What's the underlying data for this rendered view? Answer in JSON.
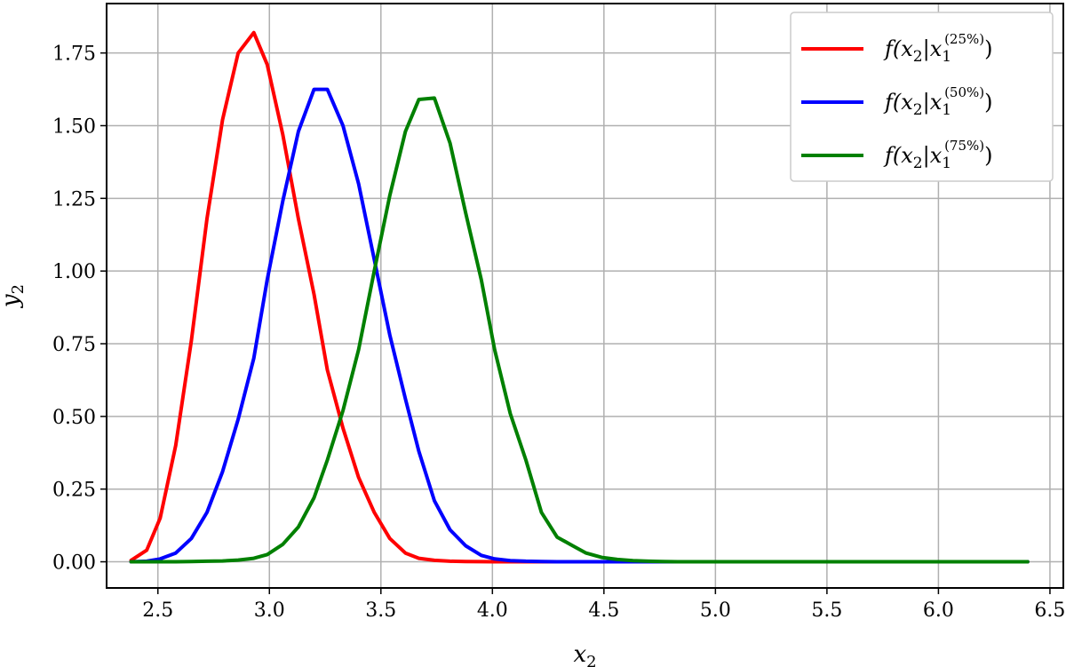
{
  "chart_data": {
    "type": "line",
    "title": "",
    "xlabel": "x2",
    "ylabel": "y2",
    "xlim": [
      2.27,
      6.56
    ],
    "ylim": [
      -0.09,
      1.92
    ],
    "xticks": [
      2.5,
      3.0,
      3.5,
      4.0,
      4.5,
      5.0,
      5.5,
      6.0,
      6.5
    ],
    "xtick_labels": [
      "2.5",
      "3.0",
      "3.5",
      "4.0",
      "4.5",
      "5.0",
      "5.5",
      "6.0",
      "6.5"
    ],
    "yticks": [
      0.0,
      0.25,
      0.5,
      0.75,
      1.0,
      1.25,
      1.5,
      1.75
    ],
    "ytick_labels": [
      "0.00",
      "0.25",
      "0.50",
      "0.75",
      "1.00",
      "1.25",
      "1.50",
      "1.75"
    ],
    "grid": true,
    "legend_position": "top-right",
    "series": [
      {
        "name": "f(x2|x1(25%))",
        "legend": {
          "base": "f(x",
          "sub1": "2",
          "mid": "|x",
          "sub2": "1",
          "sup": "(25%)",
          "end": ")"
        },
        "color": "#ff0000",
        "x": [
          2.38,
          2.45,
          2.51,
          2.58,
          2.65,
          2.72,
          2.79,
          2.86,
          2.93,
          2.99,
          3.06,
          3.13,
          3.2,
          3.26,
          3.33,
          3.4,
          3.47,
          3.54,
          3.61,
          3.67,
          3.74,
          3.81,
          3.88,
          3.95,
          4.01,
          4.08,
          4.15,
          4.22,
          4.29,
          4.36,
          4.42,
          4.49,
          4.56,
          4.63,
          4.7,
          4.76,
          4.83,
          4.9,
          4.97,
          5.04,
          5.1,
          5.17,
          5.24,
          5.31,
          5.38,
          5.45,
          5.51,
          5.58,
          5.65,
          5.72,
          5.79,
          5.85,
          5.92,
          5.99,
          6.06,
          6.13,
          6.19,
          6.26,
          6.33,
          6.4
        ],
        "y": [
          0.005,
          0.04,
          0.15,
          0.4,
          0.76,
          1.18,
          1.52,
          1.75,
          1.82,
          1.71,
          1.47,
          1.18,
          0.92,
          0.66,
          0.46,
          0.29,
          0.17,
          0.08,
          0.03,
          0.012,
          0.005,
          0.002,
          0.001,
          0.0005,
          0,
          0,
          0,
          0,
          0,
          0,
          0,
          0,
          0,
          0,
          0,
          0,
          0,
          0,
          0,
          0,
          0,
          0,
          0,
          0,
          0,
          0,
          0,
          0,
          0,
          0,
          0,
          0,
          0,
          0,
          0,
          0,
          0,
          0,
          0,
          0
        ]
      },
      {
        "name": "f(x2|x1(50%))",
        "legend": {
          "base": "f(x",
          "sub1": "2",
          "mid": "|x",
          "sub2": "1",
          "sup": "(50%)",
          "end": ")"
        },
        "color": "#0000ff",
        "x": [
          2.38,
          2.45,
          2.51,
          2.58,
          2.65,
          2.72,
          2.79,
          2.86,
          2.93,
          2.99,
          3.06,
          3.13,
          3.2,
          3.26,
          3.33,
          3.4,
          3.47,
          3.54,
          3.61,
          3.67,
          3.74,
          3.81,
          3.88,
          3.95,
          4.01,
          4.08,
          4.15,
          4.22,
          4.29,
          4.36,
          4.42,
          4.49,
          4.56,
          4.63,
          4.7,
          4.76,
          4.83,
          4.9,
          4.97,
          5.04,
          5.1,
          5.17,
          5.24,
          5.31,
          5.38,
          5.45,
          5.51,
          5.58,
          5.65,
          5.72,
          5.79,
          5.85,
          5.92,
          5.99,
          6.06,
          6.13,
          6.19,
          6.26,
          6.33,
          6.4
        ],
        "y": [
          0.0,
          0.002,
          0.01,
          0.03,
          0.08,
          0.17,
          0.31,
          0.49,
          0.7,
          0.97,
          1.24,
          1.48,
          1.625,
          1.625,
          1.5,
          1.3,
          1.04,
          0.78,
          0.56,
          0.38,
          0.21,
          0.11,
          0.055,
          0.022,
          0.01,
          0.004,
          0.002,
          0.001,
          0,
          0,
          0,
          0,
          0,
          0,
          0,
          0,
          0,
          0,
          0,
          0,
          0,
          0,
          0,
          0,
          0,
          0,
          0,
          0,
          0,
          0,
          0,
          0,
          0,
          0,
          0,
          0,
          0,
          0,
          0,
          0
        ]
      },
      {
        "name": "f(x2|x1(75%))",
        "legend": {
          "base": "f(x",
          "sub1": "2",
          "mid": "|x",
          "sub2": "1",
          "sup": "(75%)",
          "end": ")"
        },
        "color": "#008000",
        "x": [
          2.38,
          2.45,
          2.51,
          2.58,
          2.65,
          2.72,
          2.79,
          2.86,
          2.93,
          2.99,
          3.06,
          3.13,
          3.2,
          3.26,
          3.33,
          3.4,
          3.47,
          3.54,
          3.61,
          3.67,
          3.74,
          3.81,
          3.88,
          3.95,
          4.01,
          4.08,
          4.15,
          4.22,
          4.29,
          4.36,
          4.42,
          4.49,
          4.56,
          4.63,
          4.7,
          4.76,
          4.83,
          4.9,
          4.97,
          5.04,
          5.1,
          5.17,
          5.24,
          5.31,
          5.38,
          5.45,
          5.51,
          5.58,
          5.65,
          5.72,
          5.79,
          5.85,
          5.92,
          5.99,
          6.06,
          6.13,
          6.19,
          6.26,
          6.33,
          6.4
        ],
        "y": [
          0.0,
          0.0,
          0.0,
          0.0,
          0.001,
          0.002,
          0.003,
          0.006,
          0.012,
          0.025,
          0.06,
          0.12,
          0.22,
          0.35,
          0.52,
          0.73,
          1.0,
          1.26,
          1.48,
          1.59,
          1.595,
          1.44,
          1.2,
          0.97,
          0.73,
          0.51,
          0.35,
          0.17,
          0.085,
          0.055,
          0.03,
          0.015,
          0.008,
          0.004,
          0.002,
          0.001,
          0,
          0,
          0,
          0,
          0,
          0,
          0,
          0,
          0,
          0,
          0,
          0,
          0,
          0,
          0,
          0,
          0,
          0,
          0,
          0,
          0,
          0,
          0,
          0
        ]
      }
    ]
  }
}
